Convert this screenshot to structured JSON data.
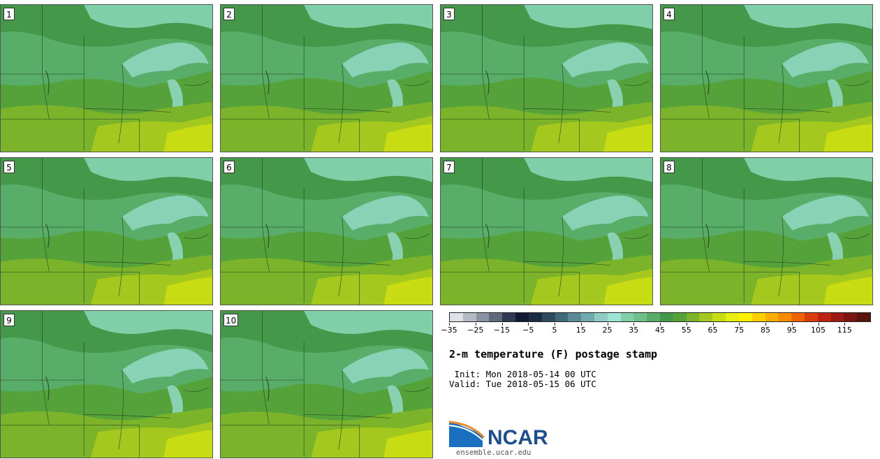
{
  "panels": [
    {
      "label": "1"
    },
    {
      "label": "2"
    },
    {
      "label": "3"
    },
    {
      "label": "4"
    },
    {
      "label": "5"
    },
    {
      "label": "6"
    },
    {
      "label": "7"
    },
    {
      "label": "8"
    },
    {
      "label": "9"
    },
    {
      "label": "10"
    }
  ],
  "colorbar": {
    "colors": [
      "#dde2e8",
      "#b3bac4",
      "#8a93a2",
      "#5f6a7d",
      "#2f3a52",
      "#111a33",
      "#1d2c44",
      "#2d4a5e",
      "#3f6a7a",
      "#5a8a96",
      "#72a9ad",
      "#8fcac5",
      "#9fe3d2",
      "#7fd0a8",
      "#6ec08a",
      "#58ad68",
      "#45974a",
      "#56a23a",
      "#7bb32a",
      "#a4c81e",
      "#c8dc14",
      "#e6ee10",
      "#fcf000",
      "#fcd000",
      "#fcae00",
      "#f88c00",
      "#f06400",
      "#dc3c0a",
      "#bd2410",
      "#9c1a12",
      "#7a1610",
      "#5a1410"
    ],
    "ticks": [
      "−35",
      "−25",
      "−15",
      "−5",
      "5",
      "15",
      "25",
      "35",
      "45",
      "55",
      "65",
      "75",
      "85",
      "95",
      "105",
      "115"
    ]
  },
  "title": "2-m temperature (F) postage stamp",
  "init_text": " Init: Mon 2018-05-14 00 UTC",
  "valid_text": "Valid: Tue 2018-05-15 06 UTC",
  "logo": {
    "text": "NCAR",
    "site": "ensemble.ucar.edu",
    "colors": {
      "blue": "#1a6fbf",
      "orange": "#e88a2e",
      "navy": "#1f4e8c"
    }
  },
  "map_colors": {
    "cold": "#7fd0a8",
    "cool": "#58ad68",
    "mid": "#45974a",
    "warm": "#56a23a",
    "warmer": "#7bb32a",
    "hot": "#a4c81e",
    "hottest": "#c8dc14",
    "lake": "#8fd6bf"
  }
}
